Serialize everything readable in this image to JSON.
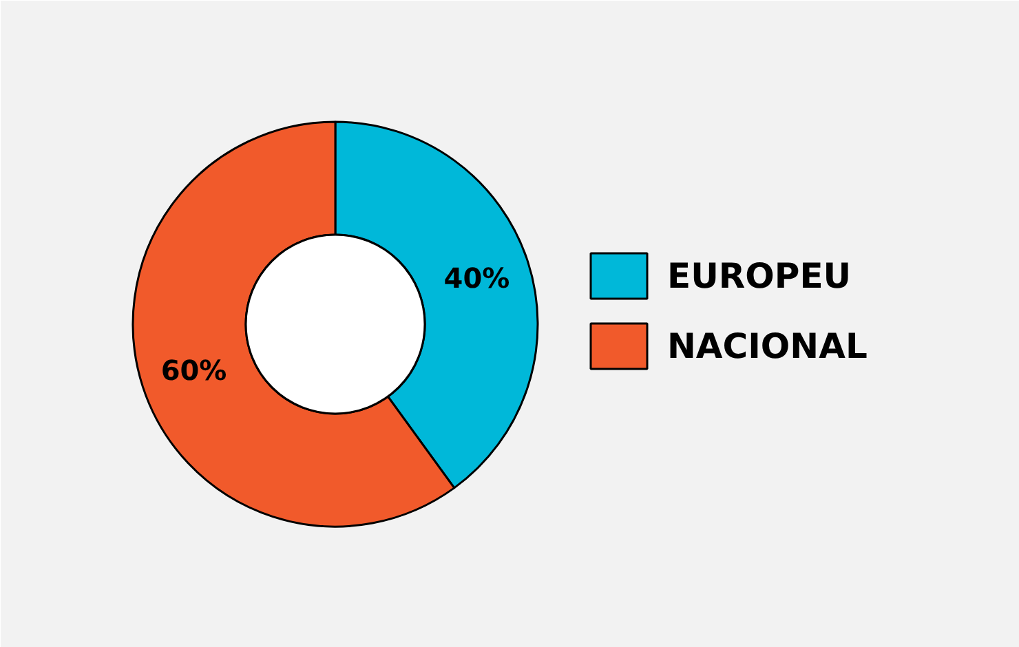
{
  "chart_data": {
    "type": "donut",
    "categories": [
      "EUROPEU",
      "NACIONAL"
    ],
    "values": [
      40,
      60
    ],
    "colors": [
      "#00b8d9",
      "#f15a2b"
    ],
    "value_labels": [
      "40%",
      "60%"
    ],
    "legend": "right"
  }
}
